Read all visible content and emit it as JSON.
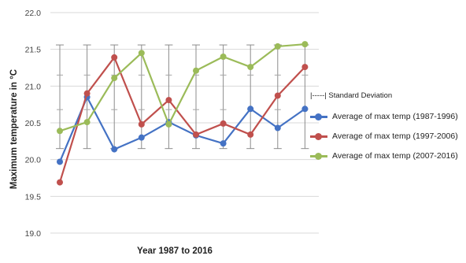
{
  "chart_data": {
    "type": "line",
    "xlabel": "Year 1987 to 2016",
    "ylabel": "Maximum temperature in °C",
    "ylim": [
      19.0,
      22.0
    ],
    "yticks": [
      "22.0",
      "21.5",
      "21.0",
      "20.5",
      "20.0",
      "19.5",
      "19.0"
    ],
    "ytick_values": [
      22.0,
      21.5,
      21.0,
      20.5,
      20.0,
      19.5,
      19.0
    ],
    "grid": "horizontal",
    "legend_position": "right",
    "error_bar_label": "|-----| Standard Deviation",
    "error_bars": [
      {
        "low": 20.15,
        "high": 21.56,
        "minor": [
          20.68,
          21.15
        ]
      },
      {
        "low": 20.15,
        "high": 21.56,
        "minor": [
          20.68,
          21.15
        ]
      },
      {
        "low": 20.15,
        "high": 21.56,
        "minor": [
          20.68,
          21.15
        ]
      },
      {
        "low": 20.15,
        "high": 21.56,
        "minor": [
          20.68,
          21.15
        ]
      },
      {
        "low": 20.15,
        "high": 21.56,
        "minor": [
          20.68,
          21.15
        ]
      },
      {
        "low": 20.15,
        "high": 21.56,
        "minor": [
          20.68,
          21.15
        ]
      },
      {
        "low": 20.15,
        "high": 21.56,
        "minor": [
          20.68,
          21.15
        ]
      },
      {
        "low": 20.15,
        "high": 21.56,
        "minor": [
          20.68,
          21.15
        ]
      },
      {
        "low": 20.15,
        "high": 21.56,
        "minor": [
          20.68,
          21.15
        ]
      },
      {
        "low": 20.15,
        "high": 21.56,
        "minor": [
          20.68,
          21.15
        ]
      }
    ],
    "series": [
      {
        "name": "Average of max temp (1987-1996)",
        "color": "#4472C4",
        "values": [
          19.97,
          20.85,
          20.14,
          20.3,
          20.51,
          20.33,
          20.22,
          20.69,
          20.43,
          20.69
        ]
      },
      {
        "name": "Average of max temp (1997-2006)",
        "color": "#C0504D",
        "values": [
          19.69,
          20.9,
          21.39,
          20.48,
          20.81,
          20.34,
          20.49,
          20.34,
          20.87,
          21.26
        ]
      },
      {
        "name": "Average of max temp (2007-2016)",
        "color": "#9BBB59",
        "values": [
          20.39,
          20.51,
          21.11,
          21.45,
          20.48,
          21.21,
          21.4,
          21.26,
          21.54,
          21.57
        ]
      }
    ]
  }
}
